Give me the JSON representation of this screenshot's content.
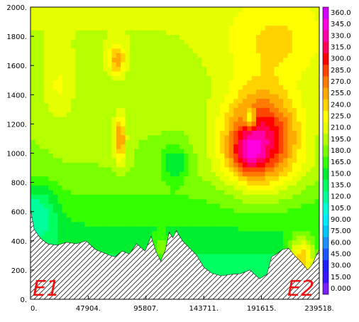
{
  "chart_data": {
    "type": "heatmap",
    "title": "",
    "xlabel": "",
    "ylabel": "",
    "xlim": [
      0,
      239518
    ],
    "ylim": [
      0,
      2000
    ],
    "x_tick_labels": [
      "0.",
      "47904.",
      "95807.",
      "143711.",
      "191615.",
      "239518."
    ],
    "x_ticks": [
      0,
      47904,
      95807,
      143711,
      191615,
      239518
    ],
    "y_tick_labels": [
      "0.",
      "200.",
      "400.",
      "600.",
      "800.",
      "1000.",
      "1200.",
      "1400.",
      "1600.",
      "1800.",
      "2000."
    ],
    "y_ticks": [
      0,
      200,
      400,
      600,
      800,
      1000,
      1200,
      1400,
      1600,
      1800,
      2000
    ],
    "colorbar": {
      "levels": [
        0,
        15,
        30,
        45,
        60,
        75,
        90,
        105,
        120,
        135,
        150,
        165,
        180,
        195,
        210,
        225,
        240,
        255,
        270,
        285,
        300,
        315,
        330,
        345,
        360
      ],
      "labels": [
        "0.000",
        "15.00",
        "30.00",
        "45.00",
        "60.00",
        "75.00",
        "90.00",
        "105.0",
        "120.0",
        "135.0",
        "150.0",
        "165.0",
        "180.0",
        "195.0",
        "210.0",
        "225.0",
        "240.0",
        "255.0",
        "270.0",
        "285.0",
        "300.0",
        "315.0",
        "330.0",
        "345.0",
        "360.0"
      ],
      "colors": [
        "#7a1fff",
        "#3a14ff",
        "#2020ff",
        "#1f55ff",
        "#1f90ff",
        "#00c8ff",
        "#00ecff",
        "#00ffd8",
        "#00ff9c",
        "#00ff60",
        "#00ee30",
        "#33ff00",
        "#7aff00",
        "#b4ff00",
        "#e6ff00",
        "#ffff00",
        "#ffd200",
        "#ffaa00",
        "#ff7a00",
        "#ff4400",
        "#ff0000",
        "#ff0055",
        "#ff00a8",
        "#ff00e0",
        "#d400ff"
      ]
    },
    "terrain": {
      "x": [
        0,
        3000,
        8000,
        14000,
        22000,
        30000,
        38000,
        46000,
        54000,
        60000,
        66000,
        70000,
        76000,
        82000,
        88000,
        95000,
        100000,
        104000,
        108000,
        112000,
        115000,
        118000,
        121000,
        126000,
        132000,
        138000,
        143711,
        150000,
        158000,
        166000,
        174000,
        182000,
        190000,
        196000,
        200000,
        204000,
        209000,
        214000,
        219000,
        225000,
        230000,
        234000,
        237000,
        239518
      ],
      "y": [
        620,
        480,
        420,
        380,
        370,
        390,
        380,
        400,
        340,
        320,
        300,
        290,
        330,
        310,
        380,
        330,
        430,
        330,
        260,
        340,
        460,
        420,
        470,
        400,
        350,
        300,
        220,
        180,
        160,
        170,
        175,
        200,
        140,
        170,
        290,
        310,
        340,
        350,
        300,
        250,
        200,
        240,
        300,
        340
      ]
    },
    "annotations": [
      "E1",
      "E2"
    ]
  }
}
